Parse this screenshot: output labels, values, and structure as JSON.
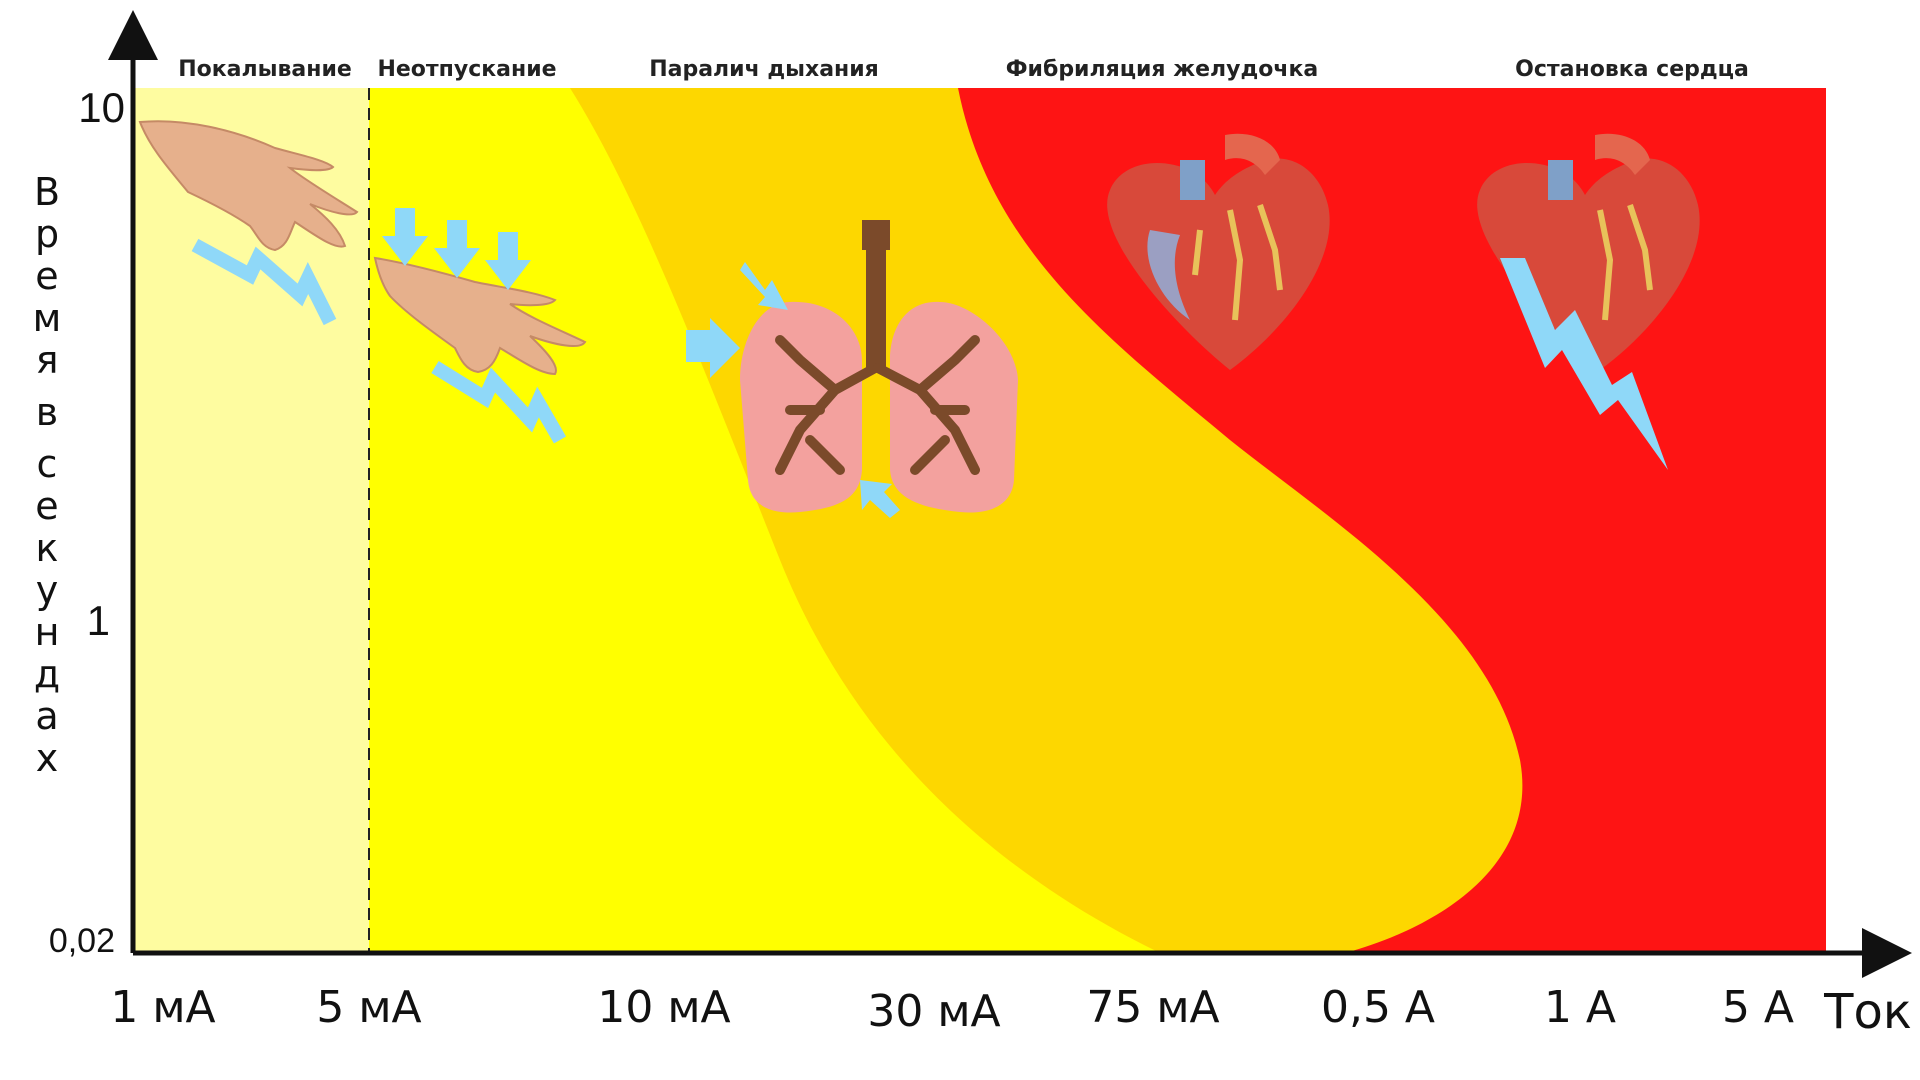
{
  "chart_data": {
    "type": "area",
    "title": "",
    "xlabel": "Ток",
    "ylabel": "Время в секундах",
    "x_tick_labels": [
      "1 мА",
      "5 мА",
      "10 мА",
      "30 мА",
      "75 мА",
      "0,5 А",
      "1 А",
      "5 А"
    ],
    "y_tick_labels": [
      "10",
      "1",
      "0,02"
    ],
    "y_ticks": [
      10,
      1,
      0.02
    ],
    "zones": [
      {
        "name": "Покалывание",
        "color": "#fefca0"
      },
      {
        "name": "Неотпускание",
        "color": "#ffff00"
      },
      {
        "name": "Паралич дыхания",
        "color": "#fdd700"
      },
      {
        "name": "Фибриляция желудочка",
        "color": "#fe1414"
      },
      {
        "name": "Остановка сердца",
        "color": "#fe1414"
      }
    ],
    "boundary_dashed_at": "5 мА"
  },
  "icons": {
    "tingling": "hand-shock-icon",
    "let_go": "hand-pressed-icon",
    "breathing": "lungs-icon",
    "fibrillation": "heart-icon",
    "arrest": "heart-lightning-icon"
  },
  "colors": {
    "axis": "#111111",
    "bolt": "#8fd8f8",
    "skin": "#e6b08c",
    "lung": "#f3a19e",
    "bronchi": "#7b4a2a",
    "heart": "#d8493a"
  }
}
